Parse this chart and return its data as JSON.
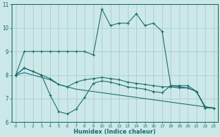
{
  "title": "",
  "xlabel": "Humidex (Indice chaleur)",
  "ylabel": "",
  "bg_color": "#cce8e8",
  "grid_color": "#aacccc",
  "line_color": "#1a6b6b",
  "xlim": [
    -0.5,
    23.5
  ],
  "ylim": [
    6,
    11
  ],
  "xticks": [
    0,
    1,
    2,
    3,
    4,
    5,
    6,
    7,
    8,
    9,
    10,
    11,
    12,
    13,
    14,
    15,
    16,
    17,
    18,
    19,
    20,
    21,
    22,
    23
  ],
  "yticks": [
    6,
    7,
    8,
    9,
    10,
    11
  ],
  "line1_x": [
    0,
    1,
    2,
    3,
    4,
    5,
    6,
    7,
    8,
    9,
    10,
    11,
    12,
    13,
    14,
    15,
    16,
    17,
    18,
    19,
    20,
    21,
    22,
    23
  ],
  "line1_y": [
    8.0,
    9.0,
    9.0,
    9.0,
    9.0,
    9.0,
    9.0,
    9.0,
    9.0,
    8.85,
    10.8,
    10.1,
    10.2,
    10.2,
    10.6,
    10.1,
    10.2,
    9.85,
    7.55,
    7.55,
    7.55,
    7.3,
    6.6,
    6.6
  ],
  "line2_x": [
    0,
    1,
    2,
    3,
    4,
    5,
    6,
    7,
    8,
    9,
    10,
    11,
    12,
    13,
    14,
    15,
    16,
    17,
    18,
    19,
    20,
    21,
    22,
    23
  ],
  "line2_y": [
    8.0,
    8.3,
    8.15,
    8.0,
    7.85,
    7.6,
    7.5,
    7.7,
    7.8,
    7.85,
    7.9,
    7.85,
    7.8,
    7.7,
    7.65,
    7.6,
    7.55,
    7.5,
    7.5,
    7.45,
    7.45,
    7.3,
    6.65,
    6.6
  ],
  "line3_x": [
    0,
    1,
    2,
    3,
    4,
    5,
    6,
    7,
    8,
    9,
    10,
    11,
    12,
    13,
    14,
    15,
    16,
    17,
    18,
    19,
    20,
    21,
    22,
    23
  ],
  "line3_y": [
    8.0,
    8.3,
    8.15,
    8.0,
    7.15,
    6.45,
    6.35,
    6.55,
    7.05,
    7.65,
    7.75,
    7.7,
    7.6,
    7.5,
    7.45,
    7.4,
    7.3,
    7.25,
    7.55,
    7.5,
    7.45,
    7.3,
    6.65,
    6.6
  ],
  "line4_x": [
    0,
    1,
    2,
    3,
    4,
    5,
    6,
    7,
    8,
    9,
    10,
    11,
    12,
    13,
    14,
    15,
    16,
    17,
    18,
    19,
    20,
    21,
    22,
    23
  ],
  "line4_y": [
    8.0,
    8.1,
    8.0,
    7.9,
    7.8,
    7.6,
    7.5,
    7.4,
    7.35,
    7.3,
    7.25,
    7.2,
    7.15,
    7.1,
    7.05,
    7.0,
    6.95,
    6.9,
    6.85,
    6.8,
    6.75,
    6.7,
    6.65,
    6.6
  ]
}
